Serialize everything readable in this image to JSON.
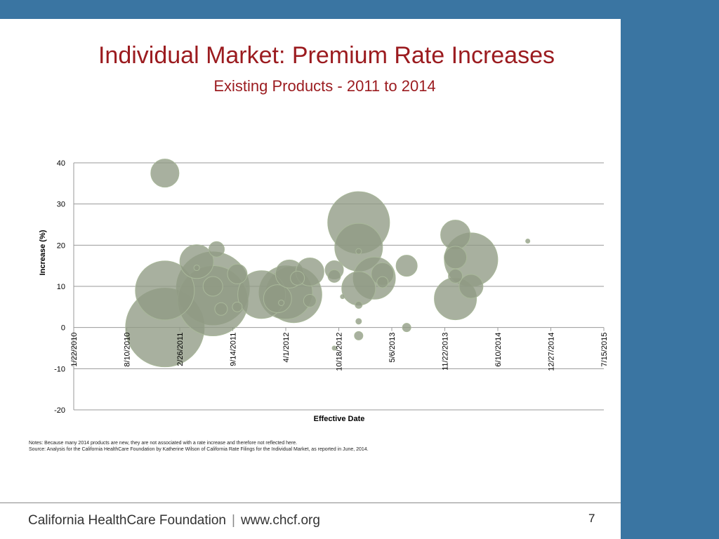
{
  "slide": {
    "title": "Individual Market: Premium Rate Increases",
    "subtitle": "Existing Products - 2011 to 2014",
    "notes_line": "Notes:  Because many 2014 products are new, they are not associated with a rate increase and therefore not reflected here.",
    "source_line": "Source:  Analysis for the California HealthCare Foundation by Katherine Wilson of California Rate Filings for the Individual Market, as reported in June, 2014.",
    "footer_org": "California HealthCare Foundation",
    "footer_sep": "|",
    "footer_url": "www.chcf.org",
    "page_number": "7"
  },
  "colors": {
    "background_band": "#3a75a2",
    "title": "#9b1b1f",
    "bubble_fill": "#8f9a84",
    "bubble_stroke": "#a9b89a",
    "gridline": "#9a9a9a"
  },
  "chart_data": {
    "type": "scatter",
    "xlabel": "Effective Date",
    "ylabel": "Increase (%)",
    "ylim": [
      -20,
      40
    ],
    "yticks": [
      40,
      30,
      20,
      10,
      0,
      -10,
      -20
    ],
    "xlim": [
      "1/22/2010",
      "7/15/2015"
    ],
    "xticks": [
      "1/22/2010",
      "8/10/2010",
      "2/26/2011",
      "9/14/2011",
      "4/1/2012",
      "10/18/2012",
      "5/6/2013",
      "11/22/2013",
      "6/10/2014",
      "12/27/2014",
      "7/15/2015"
    ],
    "grid": true,
    "legend": "none",
    "points": [
      {
        "x": "1/1/2011",
        "y": 37.5,
        "size": 20
      },
      {
        "x": "1/1/2011",
        "y": 0,
        "size": 56
      },
      {
        "x": "1/1/2011",
        "y": 9,
        "size": 42
      },
      {
        "x": "5/1/2011",
        "y": 16,
        "size": 24
      },
      {
        "x": "5/1/2011",
        "y": 14.5,
        "size": 4
      },
      {
        "x": "7/1/2011",
        "y": 6.5,
        "size": 50
      },
      {
        "x": "7/1/2011",
        "y": 9.5,
        "size": 52
      },
      {
        "x": "7/1/2011",
        "y": 10,
        "size": 14
      },
      {
        "x": "7/15/2011",
        "y": 19,
        "size": 11
      },
      {
        "x": "8/1/2011",
        "y": 4.5,
        "size": 9
      },
      {
        "x": "10/1/2011",
        "y": 13,
        "size": 14
      },
      {
        "x": "10/1/2011",
        "y": 5,
        "size": 7
      },
      {
        "x": "1/1/2012",
        "y": 8,
        "size": 34
      },
      {
        "x": "3/1/2012",
        "y": 7,
        "size": 20
      },
      {
        "x": "3/15/2012",
        "y": 6,
        "size": 4
      },
      {
        "x": "4/1/2012",
        "y": 8.5,
        "size": 38
      },
      {
        "x": "4/15/2012",
        "y": 13,
        "size": 20
      },
      {
        "x": "5/1/2012",
        "y": 8,
        "size": 40
      },
      {
        "x": "5/15/2012",
        "y": 12,
        "size": 10
      },
      {
        "x": "7/1/2012",
        "y": 13.5,
        "size": 20
      },
      {
        "x": "7/1/2012",
        "y": 6.5,
        "size": 9
      },
      {
        "x": "10/1/2012",
        "y": 14,
        "size": 13
      },
      {
        "x": "10/1/2012",
        "y": 12.5,
        "size": 9
      },
      {
        "x": "10/1/2012",
        "y": -5,
        "size": 3
      },
      {
        "x": "11/1/2012",
        "y": 7.5,
        "size": 3
      },
      {
        "x": "1/1/2013",
        "y": 25.5,
        "size": 44
      },
      {
        "x": "1/1/2013",
        "y": 19.5,
        "size": 34
      },
      {
        "x": "1/1/2013",
        "y": 9.5,
        "size": 24
      },
      {
        "x": "1/1/2013",
        "y": 5.5,
        "size": 5
      },
      {
        "x": "1/1/2013",
        "y": 1.5,
        "size": 4
      },
      {
        "x": "1/1/2013",
        "y": -2,
        "size": 6
      },
      {
        "x": "1/1/2013",
        "y": 18.5,
        "size": 4
      },
      {
        "x": "3/1/2013",
        "y": 12,
        "size": 30
      },
      {
        "x": "4/1/2013",
        "y": 13,
        "size": 16
      },
      {
        "x": "4/1/2013",
        "y": 11,
        "size": 8
      },
      {
        "x": "7/1/2013",
        "y": 15,
        "size": 15
      },
      {
        "x": "7/1/2013",
        "y": 0,
        "size": 6
      },
      {
        "x": "1/1/2014",
        "y": 22.5,
        "size": 21
      },
      {
        "x": "1/1/2014",
        "y": 7,
        "size": 30
      },
      {
        "x": "1/1/2014",
        "y": 17,
        "size": 16
      },
      {
        "x": "1/1/2014",
        "y": 12.5,
        "size": 10
      },
      {
        "x": "3/1/2014",
        "y": 16.5,
        "size": 38
      },
      {
        "x": "3/1/2014",
        "y": 10,
        "size": 17
      },
      {
        "x": "10/1/2014",
        "y": 21,
        "size": 3
      }
    ]
  }
}
